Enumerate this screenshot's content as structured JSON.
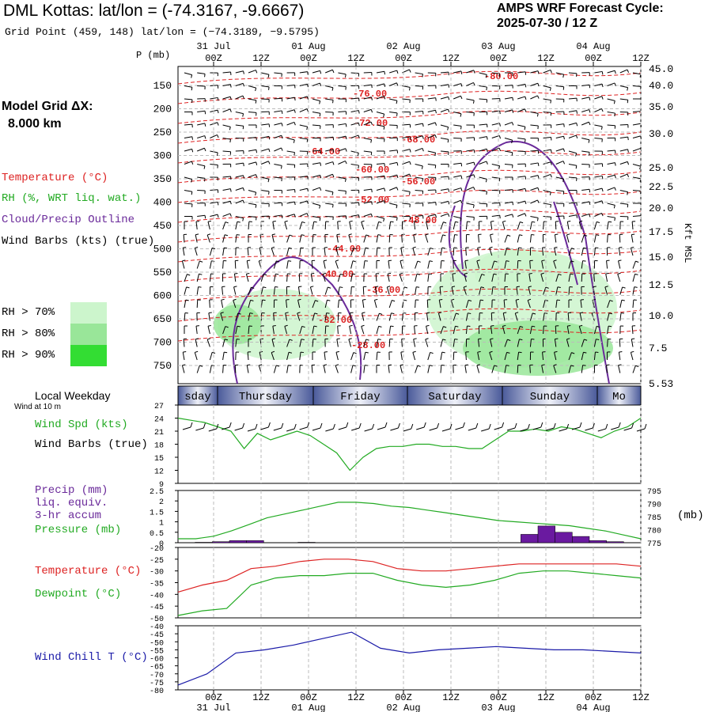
{
  "header": {
    "title": "DML Kottas:  lat/lon = (-74.3167, -9.6667)",
    "subtitle": "Grid Point (459, 148) lat/lon = (−74.3189, −9.5795)",
    "forecast_line1": "AMPS WRF Forecast Cycle:",
    "forecast_line2": "2025-07-30 / 12  Z"
  },
  "model_grid": {
    "label": "Model Grid ΔX:",
    "value": "8.000 km"
  },
  "legend": {
    "temperature": "Temperature (°C)",
    "rh": "RH (%, WRT liq. wat.)",
    "cloud": "Cloud/Precip Outline",
    "wind": "Wind Barbs (kts) (true)",
    "rh70": "RH > 70%",
    "rh80": "RH > 80%",
    "rh90": "RH > 90%"
  },
  "colors": {
    "temperature": "#dd2222",
    "rh_green": "#22aa22",
    "cloud": "#6a2a9a",
    "rh70": "#ccf5cc",
    "rh80": "#99e699",
    "rh90": "#33dd33",
    "wind_chill": "#1a1aa8",
    "precip": "#6a1aa0",
    "weekday_bar": "#6677aa"
  },
  "time_axis": {
    "top_dates": [
      "31 Jul",
      "01 Aug",
      "02 Aug",
      "03 Aug",
      "04 Aug"
    ],
    "hours": [
      "00Z",
      "12Z",
      "00Z",
      "12Z",
      "00Z",
      "12Z",
      "00Z",
      "12Z",
      "00Z",
      "12Z"
    ],
    "p_unit_label": "P (mb)",
    "weekday_label": "Local Weekday",
    "weekdays": [
      "sday",
      "Thursday",
      "Friday",
      "Saturday",
      "Sunday",
      "Mo"
    ],
    "wind_at_10m": "Wind at 10 m"
  },
  "chart_data": [
    {
      "type": "line",
      "title": "",
      "pressure_ticks": [
        "150",
        "200",
        "250",
        "300",
        "350",
        "400",
        "450",
        "500",
        "550",
        "600",
        "650",
        "700",
        "750"
      ],
      "height_ticks": [
        "45.0",
        "40.0",
        "35.0",
        "30.0",
        "25.0",
        "22.5",
        "20.0",
        "17.5",
        "15.0",
        "12.5",
        "10.0",
        "7.5",
        "5.53"
      ],
      "right_axis_label": "Kft MSL",
      "temperature_contour_labels": [
        "-80.00",
        "-76.00",
        "-72.00",
        "-68.00",
        "-64.00",
        "-60.00",
        "-56.00",
        "-52.00",
        "-48.00",
        "-44.00",
        "-40.00",
        "-36.00",
        "-32.00",
        "-28.00"
      ]
    },
    {
      "type": "line",
      "series": [
        {
          "name": "Wind Spd (kts)",
          "values": [
            24,
            23.5,
            23,
            22,
            21,
            17,
            20.5,
            19,
            20,
            21,
            20,
            18,
            16,
            12,
            15,
            17,
            17.5,
            17.5,
            18,
            18,
            17.5,
            17.5,
            17,
            17,
            19,
            21,
            21,
            21.5,
            21,
            22,
            21.5,
            20.5,
            19.5,
            21,
            22,
            24
          ]
        }
      ],
      "series_labels": [
        "Wind Spd (kts)",
        "Wind Barbs (true)"
      ],
      "y_ticks": [
        "27",
        "24",
        "21",
        "18",
        "15",
        "12",
        "9"
      ],
      "ylim": [
        9,
        27
      ]
    },
    {
      "type": "bar",
      "series": [
        {
          "name": "Precip (mm)",
          "values": [
            0,
            0.02,
            0.05,
            0.1,
            0.1,
            0,
            0,
            0.02,
            0,
            0,
            0,
            0,
            0,
            0,
            0,
            0,
            0,
            0,
            0,
            0,
            0.4,
            0.8,
            0.5,
            0.3,
            0.1,
            0.05,
            0
          ]
        },
        {
          "name": "Pressure (mb)",
          "values": [
            776.5,
            776.5,
            777.5,
            779.5,
            782,
            784.5,
            786,
            787.5,
            789,
            790.5,
            790.5,
            790,
            789,
            788.5,
            787.5,
            786.5,
            785.5,
            784.5,
            783.5,
            783,
            782.5,
            782,
            781.5,
            780.5,
            779.5,
            778,
            776.5
          ]
        }
      ],
      "series_labels": [
        "Precip (mm)",
        "liq. equiv.",
        "3-hr accum",
        "Pressure (mb)"
      ],
      "y_ticks_left": [
        "2.5",
        "2",
        "1.5",
        "1",
        "0.5",
        "0"
      ],
      "y_ticks_right": [
        "795",
        "790",
        "785",
        "780",
        "775"
      ],
      "right_unit": "(mb)",
      "ylim": [
        0,
        2.5
      ],
      "ylim_right": [
        775,
        795
      ]
    },
    {
      "type": "line",
      "series": [
        {
          "name": "Temperature (°C)",
          "values": [
            -39,
            -36,
            -34,
            -29,
            -28,
            -26,
            -25,
            -25,
            -26,
            -29,
            -30,
            -30,
            -29,
            -28,
            -27,
            -27,
            -27,
            -27,
            -27,
            -28
          ]
        },
        {
          "name": "Dewpoint (°C)",
          "values": [
            -49,
            -47,
            -46,
            -36,
            -33,
            -32,
            -32,
            -31,
            -31,
            -34,
            -36,
            -37,
            -36,
            -34,
            -31,
            -30,
            -30,
            -31,
            -32,
            -33
          ]
        }
      ],
      "y_ticks": [
        "-20",
        "-25",
        "-30",
        "-35",
        "-40",
        "-45",
        "-50"
      ],
      "ylim": [
        -50,
        -20
      ]
    },
    {
      "type": "line",
      "series": [
        {
          "name": "Wind Chill T (°C)",
          "values": [
            -77,
            -70,
            -57,
            -55,
            -52,
            -48,
            -44,
            -54,
            -57,
            -55,
            -54,
            -53,
            -54,
            -55,
            -55,
            -56,
            -57
          ]
        }
      ],
      "y_ticks": [
        "-40",
        "-45",
        "-50",
        "-55",
        "-60",
        "-65",
        "-70",
        "-75",
        "-80"
      ],
      "ylim": [
        -80,
        -40
      ]
    }
  ]
}
